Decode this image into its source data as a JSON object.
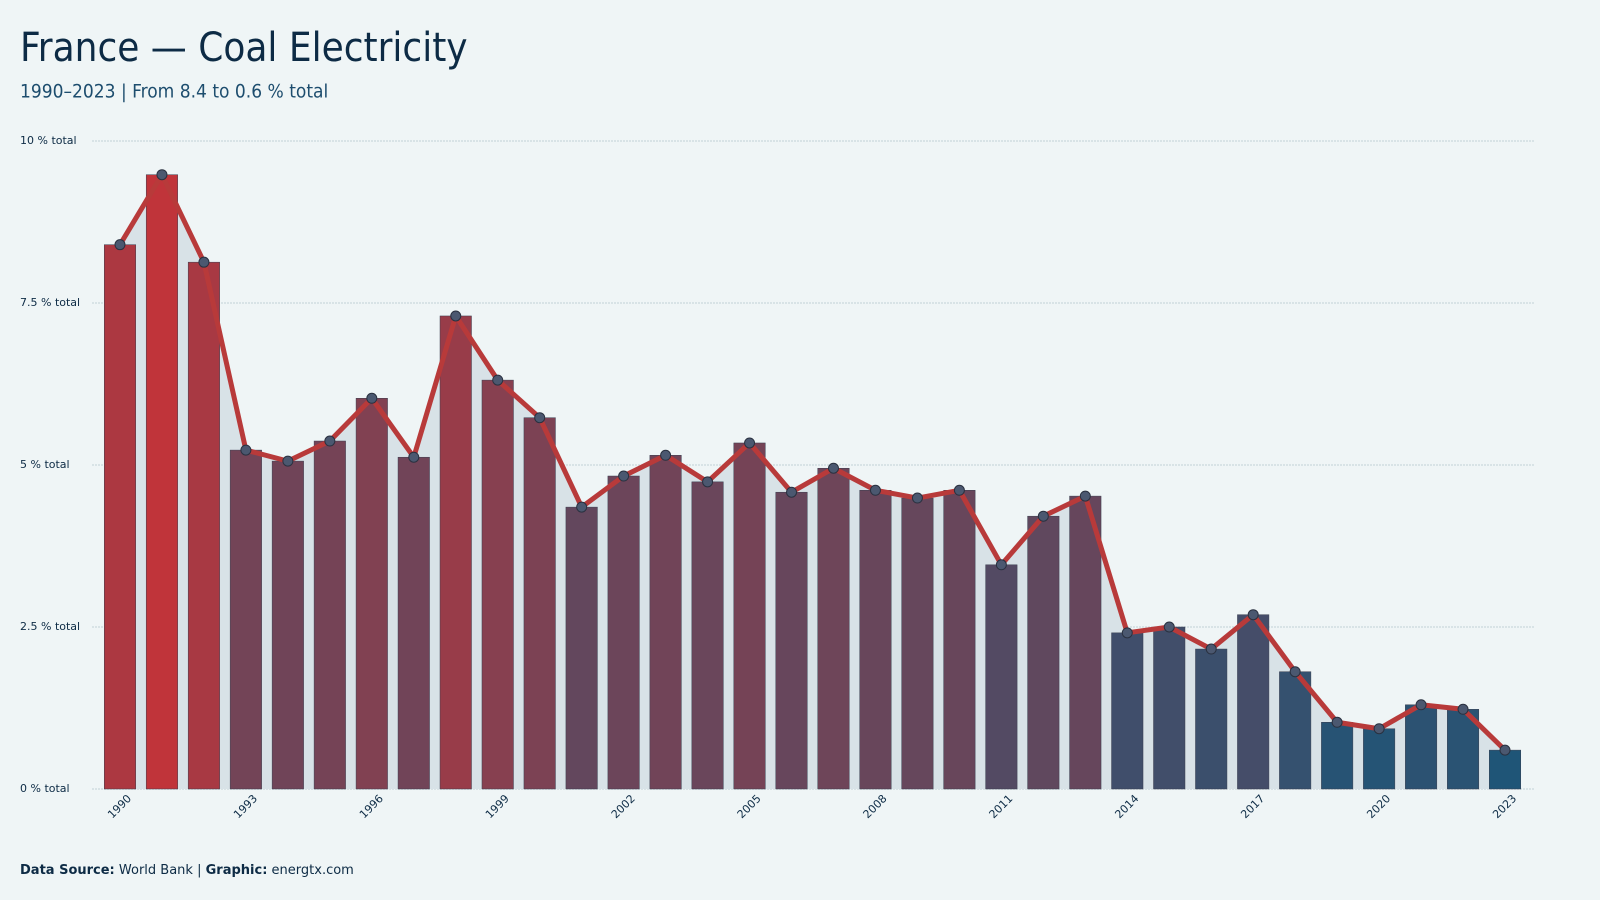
{
  "chart_data": {
    "type": "bar",
    "title": "France — Coal Electricity",
    "subtitle": "1990–2023 | From 8.4 to 0.6 % total",
    "x": [
      1990,
      1991,
      1992,
      1993,
      1994,
      1995,
      1996,
      1997,
      1998,
      1999,
      2000,
      2001,
      2002,
      2003,
      2004,
      2005,
      2006,
      2007,
      2008,
      2009,
      2010,
      2011,
      2012,
      2013,
      2014,
      2015,
      2016,
      2017,
      2018,
      2019,
      2020,
      2021,
      2022,
      2023
    ],
    "values": [
      8.4,
      9.48,
      8.13,
      5.23,
      5.06,
      5.37,
      6.03,
      5.12,
      7.3,
      6.31,
      5.73,
      4.35,
      4.83,
      5.15,
      4.74,
      5.34,
      4.58,
      4.95,
      4.61,
      4.49,
      4.61,
      3.46,
      4.21,
      4.52,
      2.41,
      2.5,
      2.16,
      2.69,
      1.81,
      1.03,
      0.93,
      1.3,
      1.23,
      0.6
    ],
    "xlim": [
      1989.5,
      2023.5
    ],
    "xticks": [
      1990,
      1993,
      1996,
      1999,
      2002,
      2005,
      2008,
      2011,
      2014,
      2017,
      2020,
      2023
    ],
    "ylim": [
      0,
      10
    ],
    "yticks": [
      {
        "value": 0,
        "label": "0 % total"
      },
      {
        "value": 2.5,
        "label": "2.5 % total"
      },
      {
        "value": 5,
        "label": "5 % total"
      },
      {
        "value": 7.5,
        "label": "7.5 % total"
      },
      {
        "value": 10,
        "label": "10 % total"
      }
    ],
    "grid": true,
    "color_low": "#1f5577",
    "color_high": "#c0343a",
    "line_color": "#b83a3a",
    "marker_color": "#4b5870",
    "area_color": "#d8e2e7",
    "footer": {
      "source_label": "Data Source:",
      "source": "World Bank",
      "graphic_label": "Graphic:",
      "graphic": "energtx.com"
    }
  }
}
